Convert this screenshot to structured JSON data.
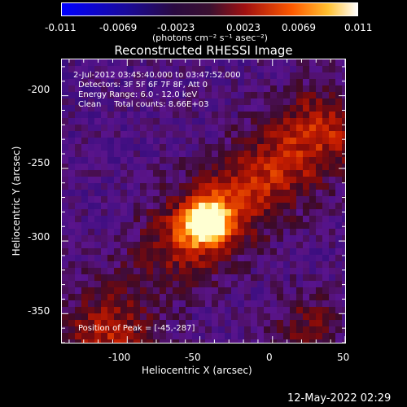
{
  "colorbar": {
    "tick_labels": [
      "-0.011",
      "-0.0069",
      "-0.0023",
      "0.0023",
      "0.0069",
      "0.011"
    ],
    "units_label": "(photons cm⁻² s⁻¹ asec⁻²)",
    "range": [
      -0.011,
      0.011
    ]
  },
  "chart_data": {
    "type": "heatmap",
    "title": "Reconstructed RHESSI Image",
    "xlabel": "Heliocentric X (arcsec)",
    "ylabel": "Heliocentric Y (arcsec)",
    "xlim": [
      -145,
      50
    ],
    "ylim": [
      -370,
      -175
    ],
    "x_ticks": [
      -100,
      -50,
      0,
      50
    ],
    "y_ticks": [
      -200,
      -250,
      -300,
      -350
    ],
    "peak": {
      "x": -45,
      "y": -287
    }
  },
  "annotations": {
    "time_range": "2-Jul-2012 03:45:40.000 to 03:47:52.000",
    "detectors": "Detectors: 3F 5F 6F 7F 8F, Att 0",
    "energy_range": "Energy Range: 6.0 - 12.0 keV",
    "method_counts": "Clean     Total counts: 8.66E+03",
    "peak_position": "Position of Peak = [-45,-287]"
  },
  "timestamp": "12-May-2022 02:29",
  "colors": {
    "background": "#000000",
    "foreground": "#ffffff",
    "colormap_low": "#0000ff",
    "colormap_mid": "#7a1a8c",
    "colormap_high": "#ffff88"
  }
}
